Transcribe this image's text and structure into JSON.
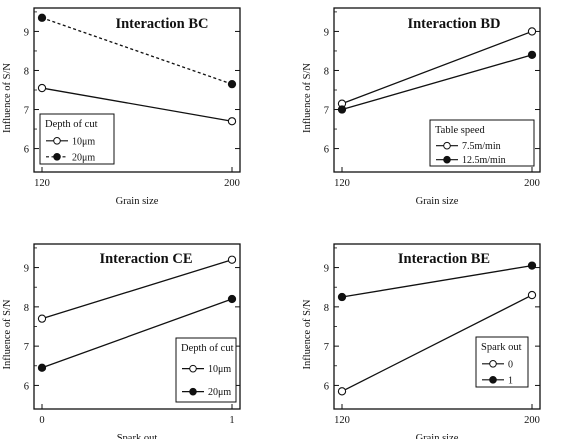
{
  "colors": {
    "ink": "#111111",
    "background": "#ffffff"
  },
  "chart_data": [
    {
      "type": "line",
      "title": "Interaction BC",
      "xlabel": "Grain size",
      "ylabel": "Influence of S/N",
      "x": [
        120,
        200
      ],
      "x_ticks": [
        "120",
        "200"
      ],
      "ylim": [
        5.4,
        9.6
      ],
      "y_ticks": [
        "6",
        "7",
        "8",
        "9"
      ],
      "legend": {
        "title": "Depth of cut",
        "placement": "bottom-left"
      },
      "series": [
        {
          "name": "10μm",
          "marker": "open-circle",
          "line": "solid",
          "values": [
            7.55,
            6.7
          ]
        },
        {
          "name": "20μm",
          "marker": "filled-circle",
          "line": "dashed",
          "values": [
            9.35,
            7.65
          ]
        }
      ]
    },
    {
      "type": "line",
      "title": "Interaction BD",
      "xlabel": "Grain size",
      "ylabel": "Influence of S/N",
      "x": [
        120,
        200
      ],
      "x_ticks": [
        "120",
        "200"
      ],
      "ylim": [
        5.4,
        9.6
      ],
      "y_ticks": [
        "6",
        "7",
        "8",
        "9"
      ],
      "legend": {
        "title": "Table speed",
        "placement": "bottom-right"
      },
      "series": [
        {
          "name": "7.5m/min",
          "marker": "open-circle",
          "line": "solid",
          "values": [
            7.15,
            9.0
          ]
        },
        {
          "name": "12.5m/min",
          "marker": "filled-circle",
          "line": "solid",
          "values": [
            7.0,
            8.4
          ]
        }
      ]
    },
    {
      "type": "line",
      "title": "Interaction CE",
      "xlabel": "Spark out",
      "ylabel": "Influence of S/N",
      "x": [
        0,
        1
      ],
      "x_ticks": [
        "0",
        "1"
      ],
      "ylim": [
        5.4,
        9.6
      ],
      "y_ticks": [
        "6",
        "7",
        "8",
        "9"
      ],
      "legend": {
        "title": "Depth of cut",
        "placement": "bottom-right"
      },
      "series": [
        {
          "name": "10μm",
          "marker": "open-circle",
          "line": "solid",
          "values": [
            7.7,
            9.2
          ]
        },
        {
          "name": "20μm",
          "marker": "filled-circle",
          "line": "solid",
          "values": [
            6.45,
            8.2
          ]
        }
      ]
    },
    {
      "type": "line",
      "title": "Interaction BE",
      "xlabel": "Grain size",
      "ylabel": "Influence of S/N",
      "x": [
        120,
        200
      ],
      "x_ticks": [
        "120",
        "200"
      ],
      "ylim": [
        5.4,
        9.6
      ],
      "y_ticks": [
        "6",
        "7",
        "8",
        "9"
      ],
      "legend": {
        "title": "Spark out",
        "placement": "bottom-right"
      },
      "series": [
        {
          "name": "0",
          "marker": "open-circle",
          "line": "solid",
          "values": [
            5.85,
            8.3
          ]
        },
        {
          "name": "1",
          "marker": "filled-circle",
          "line": "solid",
          "values": [
            8.25,
            9.05
          ]
        }
      ]
    }
  ]
}
